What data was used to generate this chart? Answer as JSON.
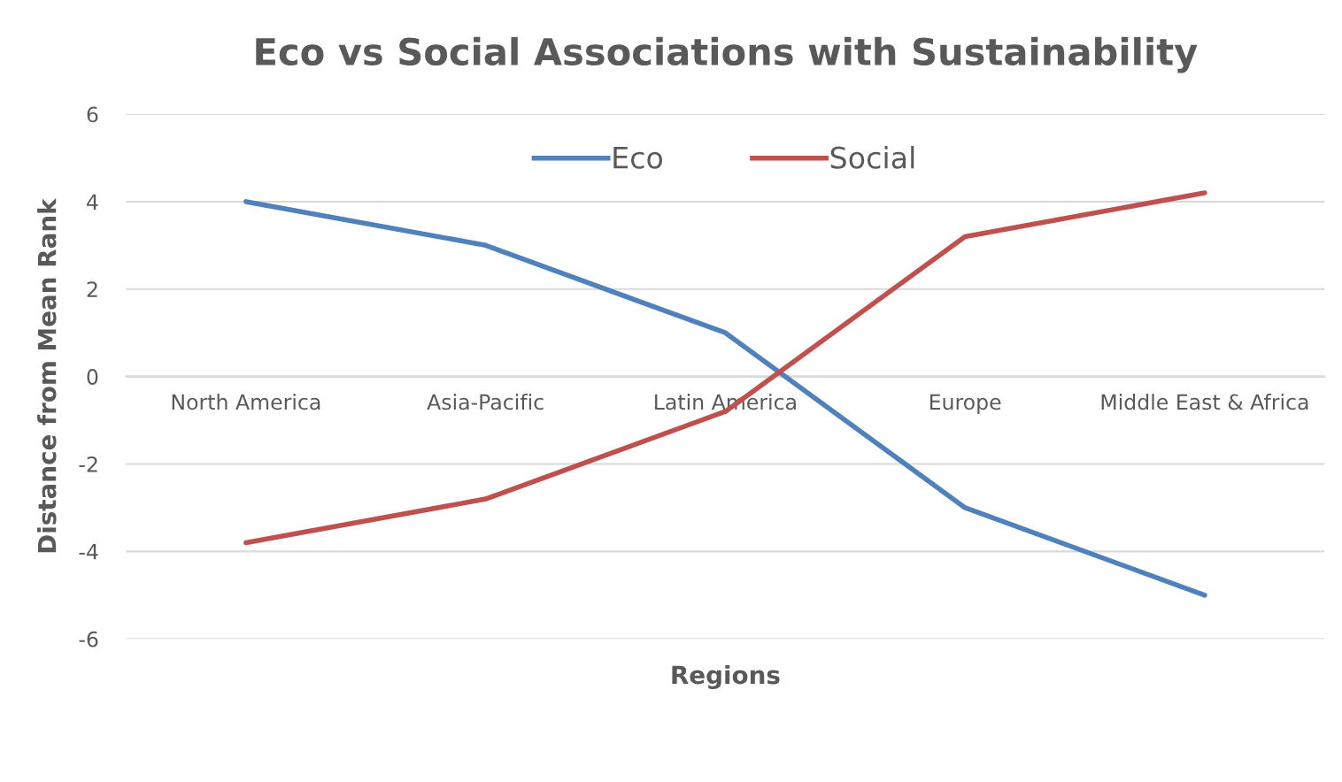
{
  "chart_data": {
    "type": "line",
    "title": "Eco vs Social Associations with Sustainability",
    "xlabel": "Regions",
    "ylabel": "Distance from Mean Rank",
    "categories": [
      "North America",
      "Asia-Pacific",
      "Latin America",
      "Europe",
      "Middle East & Africa"
    ],
    "series": [
      {
        "name": "Eco",
        "color": "#4f81bd",
        "values": [
          4,
          3,
          1,
          -3,
          -5
        ]
      },
      {
        "name": "Social",
        "color": "#c0504d",
        "values": [
          -3.8,
          -2.8,
          -0.8,
          3.2,
          4.2
        ]
      }
    ],
    "ylim": [
      -6,
      6
    ],
    "yticks": [
      6,
      4,
      2,
      0,
      -2,
      -4,
      -6
    ],
    "grid": "y",
    "legend": "top",
    "marker": "none",
    "line_style": "solid"
  }
}
